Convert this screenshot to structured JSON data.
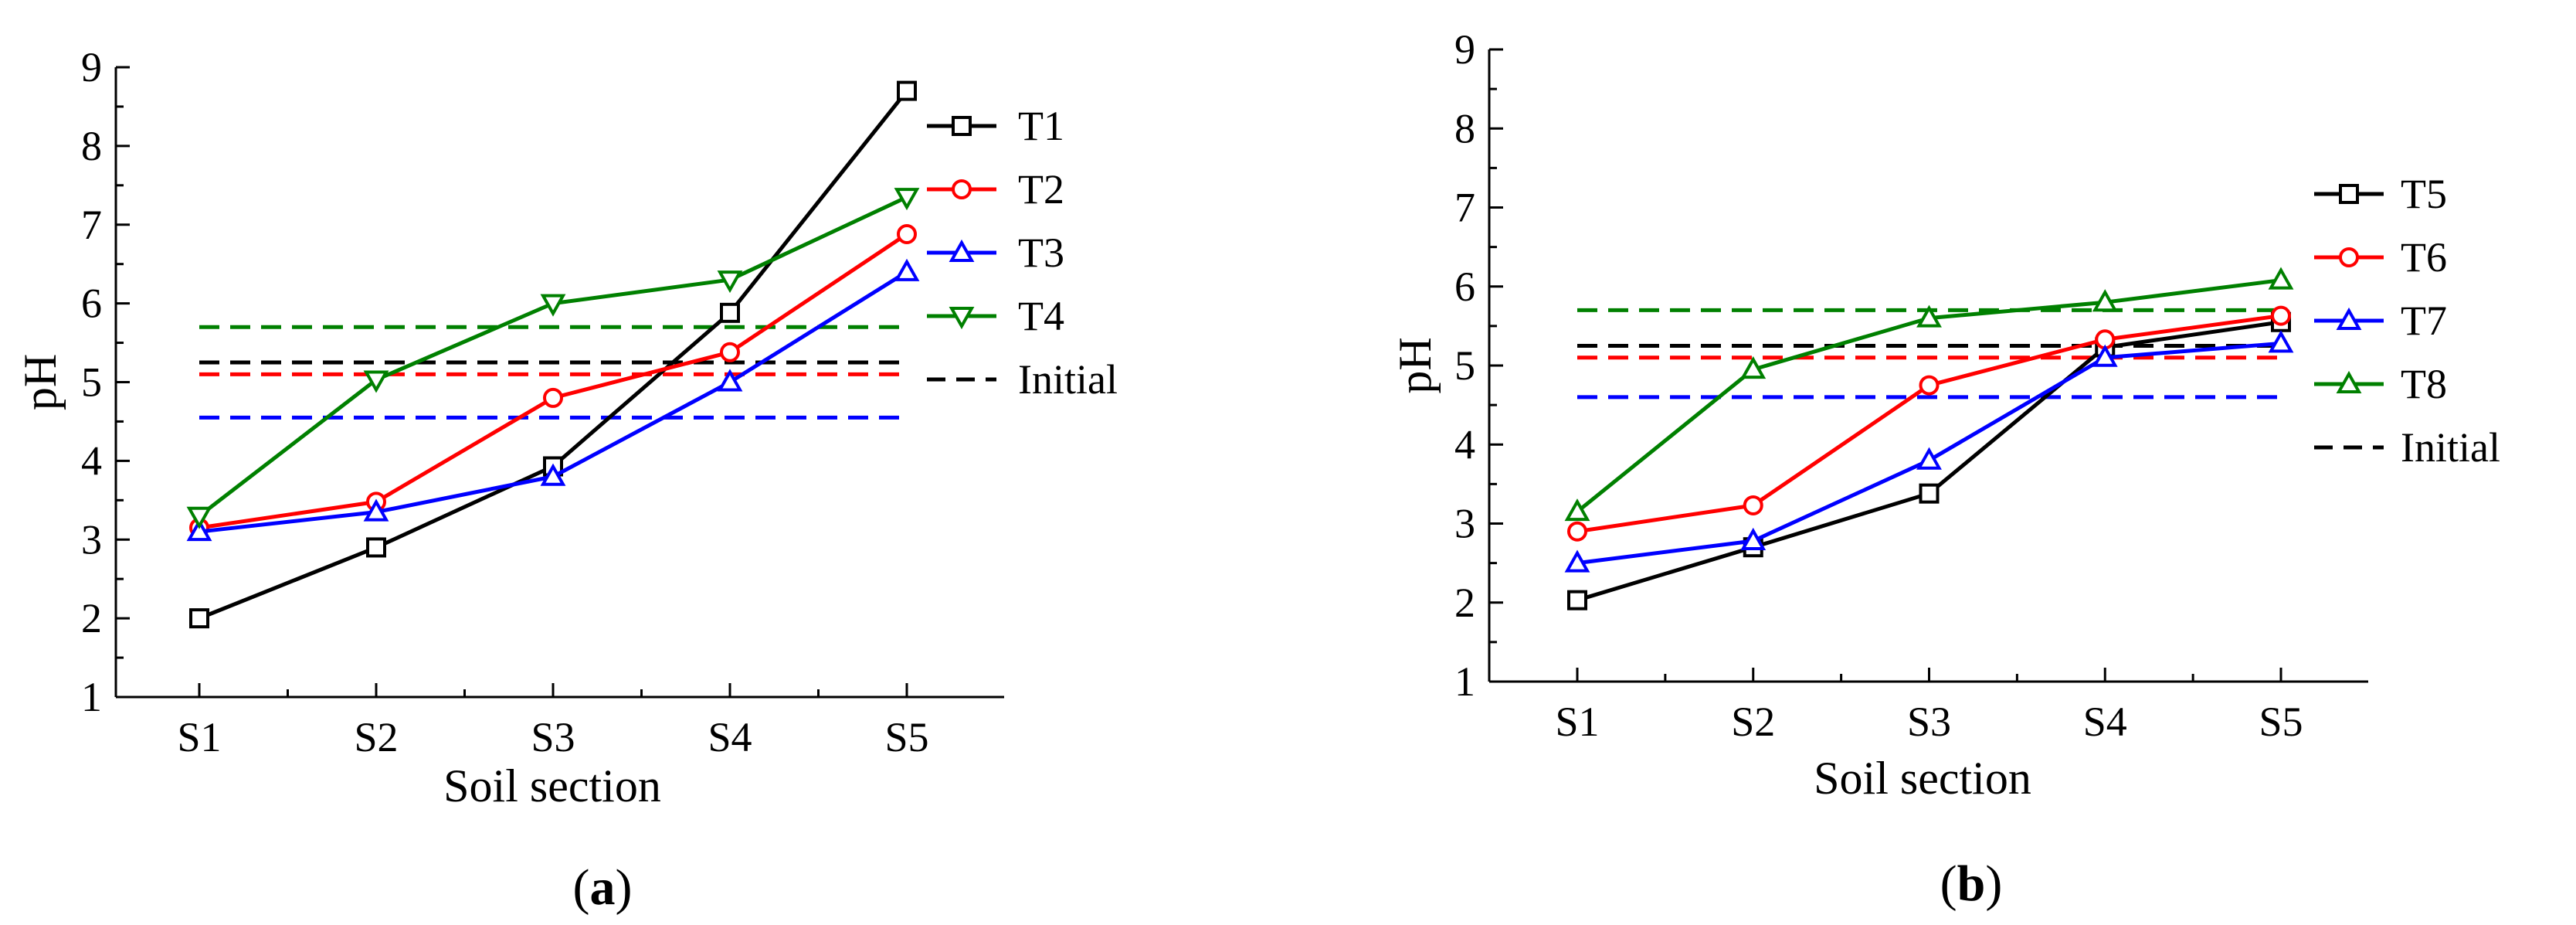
{
  "chart_data": [
    {
      "type": "line",
      "panel_label": "a",
      "title": "",
      "xlabel": "Soil section",
      "ylabel": "pH",
      "categories": [
        "S1",
        "S2",
        "S3",
        "S4",
        "S5"
      ],
      "ylim": [
        1,
        9
      ],
      "yticks": [
        1,
        2,
        3,
        4,
        5,
        6,
        7,
        8,
        9
      ],
      "grid": false,
      "legend_position": "right",
      "series": [
        {
          "name": "T1",
          "color": "#000000",
          "marker": "square",
          "values": [
            2.0,
            2.9,
            3.93,
            5.88,
            8.7
          ]
        },
        {
          "name": "T2",
          "color": "#ff0000",
          "marker": "circle",
          "values": [
            3.15,
            3.48,
            4.8,
            5.38,
            6.88
          ]
        },
        {
          "name": "T3",
          "color": "#0000ff",
          "marker": "triangle-up",
          "values": [
            3.1,
            3.35,
            3.8,
            5.0,
            6.4
          ]
        },
        {
          "name": "T4",
          "color": "#008000",
          "marker": "triangle-down",
          "values": [
            3.3,
            5.03,
            6.0,
            6.3,
            7.35
          ]
        }
      ],
      "reference_lines": [
        {
          "color": "#008000",
          "value": 5.7
        },
        {
          "color": "#000000",
          "value": 5.25
        },
        {
          "color": "#ff0000",
          "value": 5.1
        },
        {
          "color": "#0000ff",
          "value": 4.55
        }
      ],
      "reference_legend_label": "Initial"
    },
    {
      "type": "line",
      "panel_label": "b",
      "title": "",
      "xlabel": "Soil section",
      "ylabel": "pH",
      "categories": [
        "S1",
        "S2",
        "S3",
        "S4",
        "S5"
      ],
      "ylim": [
        1,
        9
      ],
      "yticks": [
        1,
        2,
        3,
        4,
        5,
        6,
        7,
        8,
        9
      ],
      "grid": false,
      "legend_position": "right",
      "series": [
        {
          "name": "T5",
          "color": "#000000",
          "marker": "square",
          "values": [
            2.03,
            2.7,
            3.38,
            5.23,
            5.55
          ]
        },
        {
          "name": "T6",
          "color": "#ff0000",
          "marker": "circle",
          "values": [
            2.9,
            3.23,
            4.75,
            5.33,
            5.63
          ]
        },
        {
          "name": "T7",
          "color": "#0000ff",
          "marker": "triangle-up",
          "values": [
            2.5,
            2.78,
            3.8,
            5.1,
            5.28
          ]
        },
        {
          "name": "T8",
          "color": "#008000",
          "marker": "triangle-up",
          "values": [
            3.15,
            4.95,
            5.6,
            5.8,
            6.08
          ]
        }
      ],
      "reference_lines": [
        {
          "color": "#008000",
          "value": 5.7
        },
        {
          "color": "#000000",
          "value": 5.25
        },
        {
          "color": "#ff0000",
          "value": 5.1
        },
        {
          "color": "#0000ff",
          "value": 4.6
        }
      ],
      "reference_legend_label": "Initial"
    }
  ]
}
